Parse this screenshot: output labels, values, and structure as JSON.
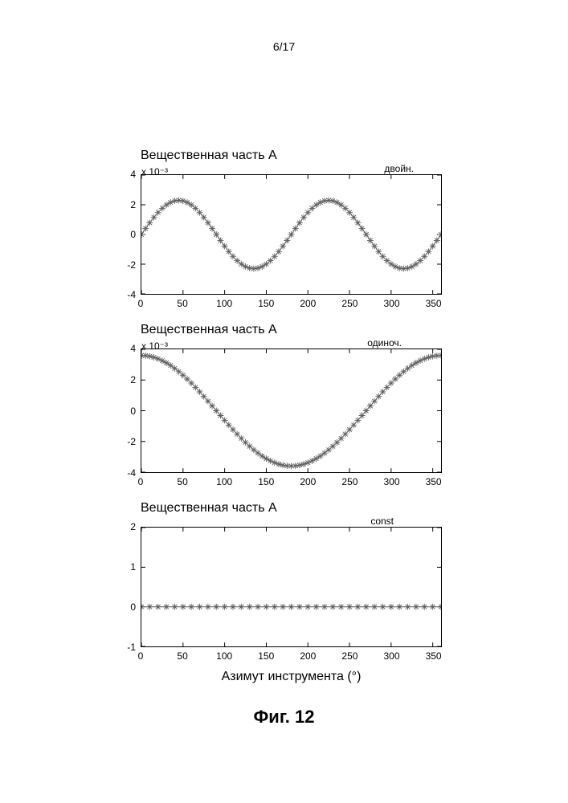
{
  "page_number": "6/17",
  "figure_caption": "Фиг. 12",
  "x_axis_label": "Азимут инструмента (°)",
  "global": {
    "background_color": "#ffffff",
    "border_color": "#000000",
    "text_color": "#000000",
    "marker_color": "#606060",
    "marker_style": "star-dot",
    "marker_size": 4,
    "line_color": "#707070",
    "line_width": 1.1,
    "title_fontsize": 16,
    "tick_fontsize": 12,
    "axis_label_fontsize": 16
  },
  "x_axis": {
    "xlim": [
      0,
      360
    ],
    "ticks": [
      0,
      50,
      100,
      150,
      200,
      250,
      300,
      350
    ],
    "tick_labels": [
      "0",
      "50",
      "100",
      "150",
      "200",
      "250",
      "300",
      "350"
    ]
  },
  "charts": [
    {
      "id": "chart1",
      "type": "scatter-line",
      "title": "Вещественная часть A",
      "subscript": "двойн.",
      "exponent": "x 10⁻³",
      "ylim": [
        -4,
        4
      ],
      "yticks": [
        -4,
        -2,
        0,
        2,
        4
      ],
      "ytick_labels": [
        "-4",
        "-2",
        "0",
        "2",
        "4"
      ],
      "curve": "y = 2.3e-3 * sin(2*theta_deg * pi/180) offset 0",
      "samples_deg_step": 5
    },
    {
      "id": "chart2",
      "type": "scatter-line",
      "title": "Вещественная часть A",
      "subscript": "одиноч.",
      "exponent": "x 10⁻³",
      "ylim": [
        -4,
        4
      ],
      "yticks": [
        -4,
        -2,
        0,
        2,
        4
      ],
      "ytick_labels": [
        "-4",
        "-2",
        "0",
        "2",
        "4"
      ],
      "curve": "y = 3.6e-3 * cos(theta_deg * pi/180)",
      "samples_deg_step": 5
    },
    {
      "id": "chart3",
      "type": "scatter-line",
      "title": "Вещественная часть A",
      "subscript": "const",
      "exponent": "",
      "ylim": [
        -1,
        2
      ],
      "yticks": [
        -1,
        0,
        1,
        2
      ],
      "ytick_labels": [
        "-1",
        "0",
        "1",
        "2"
      ],
      "curve": "y = 0",
      "samples_deg_step": 10
    }
  ]
}
